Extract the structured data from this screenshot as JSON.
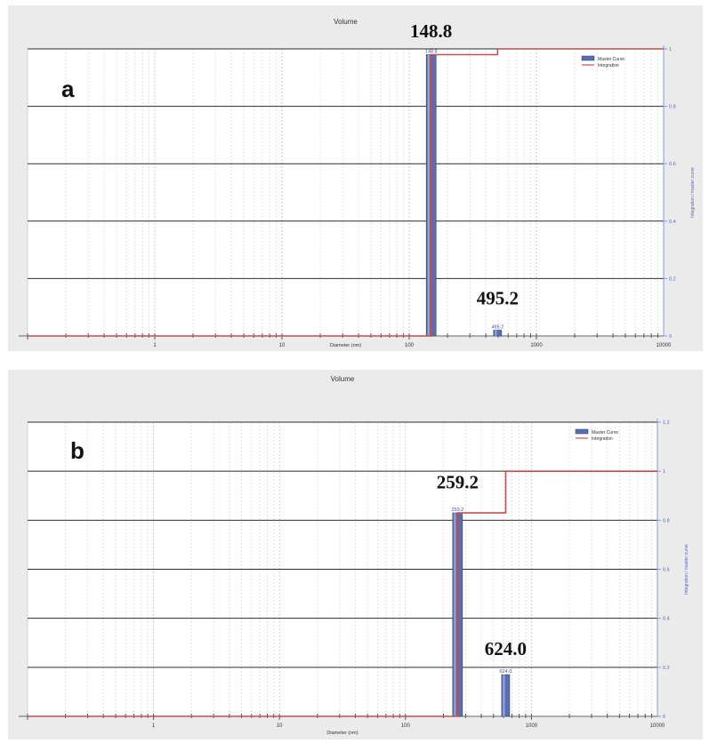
{
  "chart_data": [
    {
      "panel_letter": "a",
      "type": "bar",
      "title": "Volume",
      "xlabel": "Diameter (nm)",
      "ylabel_right": "Integration / master curve",
      "x_scale": "log",
      "xlim": [
        0.1,
        10000
      ],
      "ylim": [
        0,
        1
      ],
      "x_ticks": [
        1,
        10,
        100,
        1000,
        10000
      ],
      "x_tick_labels": [
        "1",
        "10",
        "100",
        "1000",
        "10000"
      ],
      "y_ticks": [
        0,
        0.2,
        0.4,
        0.6,
        0.8,
        1
      ],
      "y_tick_labels": [
        "0",
        "0.2",
        "0.4",
        "0.6",
        "0.8",
        "1"
      ],
      "grid": true,
      "legend_placement": "top-right",
      "legend": [
        "Master Curve",
        "Integration"
      ],
      "series": [
        {
          "name": "Master Curve",
          "kind": "bar",
          "x": [
            148.8,
            495.2
          ],
          "values": [
            0.98,
            0.02
          ],
          "bar_labels": [
            "148.8",
            "495.2"
          ]
        },
        {
          "name": "Integration",
          "kind": "step",
          "points": [
            [
              0.1,
              0
            ],
            [
              148.8,
              0
            ],
            [
              148.8,
              0.98
            ],
            [
              495.2,
              0.98
            ],
            [
              495.2,
              1
            ],
            [
              10000,
              1
            ]
          ]
        }
      ],
      "annotations": [
        {
          "text": "148.8",
          "x": 148.8,
          "y": 1.04
        },
        {
          "text": "495.2",
          "x": 495.2,
          "y": 0.11
        }
      ],
      "colors": {
        "bar": "#5a6fb0",
        "integration": "#c0504d",
        "axis": "#8899dd"
      }
    },
    {
      "panel_letter": "b",
      "type": "bar",
      "title": "Volume",
      "xlabel": "Diameter (nm)",
      "ylabel_right": "Integration / master curve",
      "x_scale": "log",
      "xlim": [
        0.1,
        10000
      ],
      "ylim": [
        0,
        1.2
      ],
      "x_ticks": [
        1,
        10,
        100,
        1000,
        10000
      ],
      "x_tick_labels": [
        "1",
        "10",
        "100",
        "1000",
        "10000"
      ],
      "y_ticks": [
        0,
        0.2,
        0.4,
        0.6,
        0.8,
        1,
        1.2
      ],
      "y_tick_labels": [
        "0",
        "0.2",
        "0.4",
        "0.6",
        "0.8",
        "1",
        "1.2"
      ],
      "grid": true,
      "legend_placement": "top-right",
      "legend": [
        "Master Curve",
        "Integration"
      ],
      "series": [
        {
          "name": "Master Curve",
          "kind": "bar",
          "x": [
            259.2,
            624.0
          ],
          "values": [
            0.83,
            0.17
          ],
          "bar_labels": [
            "259.2",
            "624.0"
          ]
        },
        {
          "name": "Integration",
          "kind": "step",
          "points": [
            [
              0.1,
              0
            ],
            [
              259.2,
              0
            ],
            [
              259.2,
              0.83
            ],
            [
              624.0,
              0.83
            ],
            [
              624.0,
              1
            ],
            [
              10000,
              1
            ]
          ]
        }
      ],
      "annotations": [
        {
          "text": "259.2",
          "x": 259.2,
          "y": 0.93
        },
        {
          "text": "624.0",
          "x": 624.0,
          "y": 0.25
        }
      ],
      "colors": {
        "bar": "#5a6fb0",
        "integration": "#c0504d",
        "axis": "#8899dd"
      }
    }
  ]
}
